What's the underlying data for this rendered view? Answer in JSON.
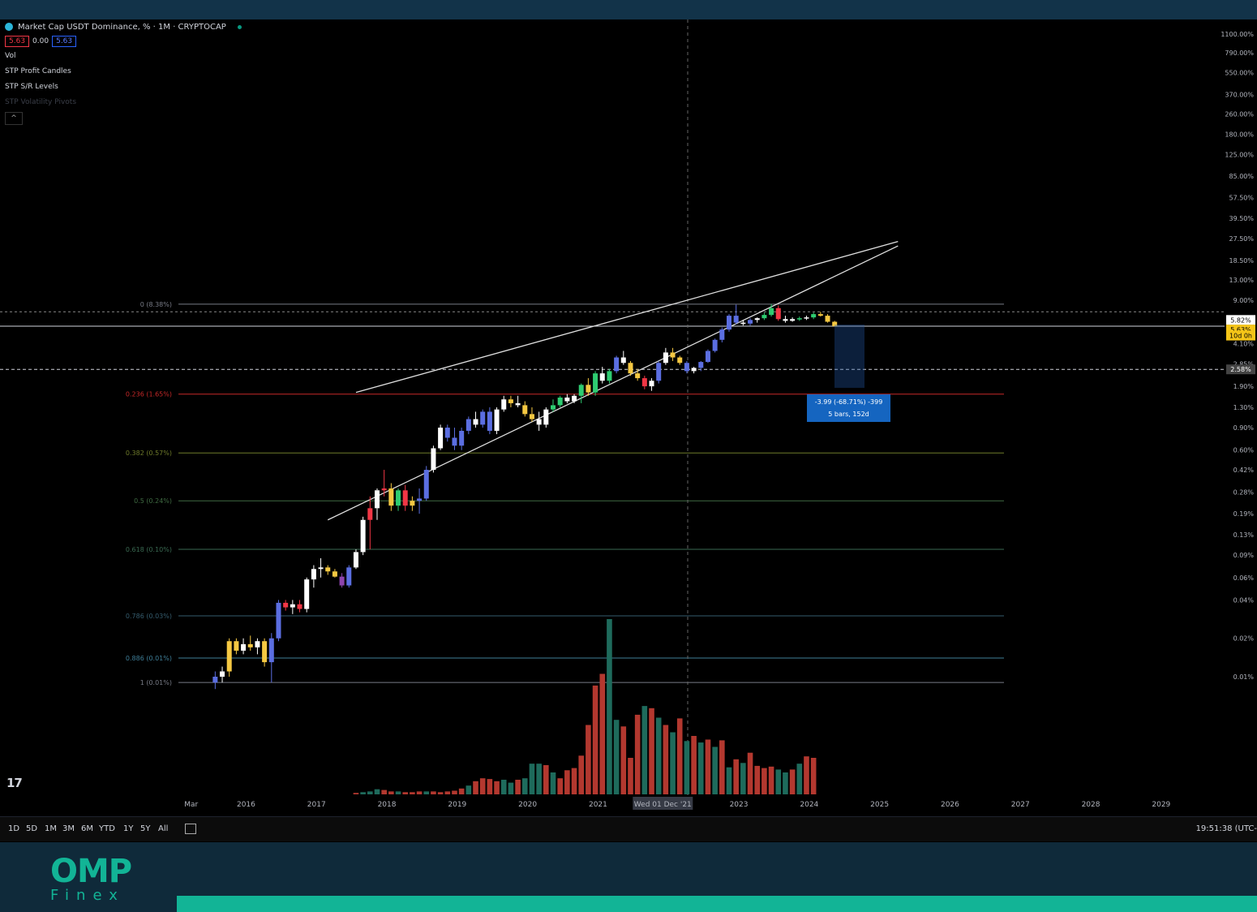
{
  "legend": {
    "title": "Market Cap USDT Dominance, % · 1M · CRYPTOCAP",
    "price_left": "5.63",
    "price_mid": "0.00",
    "price_right": "5.63",
    "indicators": [
      "Vol",
      "STP Profit Candles",
      "STP S/R Levels",
      "STP Volatility Pivots"
    ],
    "collapse_label": "^"
  },
  "colors": {
    "background": "#000000",
    "bull_candle": "#5b6ee1",
    "bear_candle": "#f23645",
    "white_candle": "#ffffff",
    "yellow_candle": "#f5c842",
    "volume_bear": "#b3382f",
    "volume_bull": "#1e6b5c",
    "brand": "#12b496"
  },
  "chart_data": {
    "type": "candlestick",
    "title": "Market Cap USDT Dominance, % · 1M · CRYPTOCAP",
    "y_scale": "log",
    "y_axis_ticks": [
      "1100.00%",
      "790.00%",
      "550.00%",
      "370.00%",
      "260.00%",
      "180.00%",
      "125.00%",
      "85.00%",
      "57.50%",
      "39.50%",
      "27.50%",
      "18.50%",
      "13.00%",
      "9.00%",
      "6.10%",
      "4.10%",
      "2.85%",
      "1.90%",
      "1.30%",
      "0.90%",
      "0.60%",
      "0.42%",
      "0.28%",
      "0.19%",
      "0.13%",
      "0.09%",
      "0.06%",
      "0.04%",
      "0.02%",
      "0.01%"
    ],
    "x_axis_ticks": [
      "Mar",
      "2016",
      "2017",
      "2018",
      "2019",
      "2020",
      "2021",
      "Wed 01 Dec '21",
      "2023",
      "2024",
      "2025",
      "2026",
      "2027",
      "2028",
      "2029"
    ],
    "current_price_labels": [
      "5.82%",
      "5.63%",
      "10d 0h",
      "2.58%"
    ],
    "fib_levels": [
      {
        "label": "0 (8.38%)",
        "value": 8.38,
        "color": "#787b86"
      },
      {
        "label": "0.236 (1.65%)",
        "value": 1.65,
        "color": "#c62828"
      },
      {
        "label": "0.382 (0.57%)",
        "value": 0.57,
        "color": "#6e7a2a"
      },
      {
        "label": "0.5 (0.24%)",
        "value": 0.24,
        "color": "#3f6b42"
      },
      {
        "label": "0.618 (0.10%)",
        "value": 0.1,
        "color": "#3a6a52"
      },
      {
        "label": "0.786 (0.03%)",
        "value": 0.03,
        "color": "#355c6e"
      },
      {
        "label": "0.886 (0.01%)",
        "value": 0.014,
        "color": "#3f7f99"
      },
      {
        "label": "1 (0.01%)",
        "value": 0.009,
        "color": "#787b86"
      }
    ],
    "horizontal_lines": [
      7.3,
      5.63,
      2.58
    ],
    "measure_label": [
      "-3.99 (-68.71%) -399",
      "5 bars, 152d"
    ],
    "crosshair_date": "Wed 01 Dec '21",
    "candles": [
      {
        "d": "2015.9",
        "o": 0.009,
        "h": 0.011,
        "l": 0.008,
        "c": 0.01,
        "t": "b"
      },
      {
        "d": "2016.0",
        "o": 0.01,
        "h": 0.012,
        "l": 0.009,
        "c": 0.011,
        "t": "w"
      },
      {
        "d": "2016.1",
        "o": 0.011,
        "h": 0.02,
        "l": 0.01,
        "c": 0.019,
        "t": "y"
      },
      {
        "d": "2016.2",
        "o": 0.019,
        "h": 0.02,
        "l": 0.015,
        "c": 0.016,
        "t": "y"
      },
      {
        "d": "2016.3",
        "o": 0.016,
        "h": 0.02,
        "l": 0.015,
        "c": 0.018,
        "t": "w"
      },
      {
        "d": "2016.4",
        "o": 0.018,
        "h": 0.021,
        "l": 0.016,
        "c": 0.017,
        "t": "y"
      },
      {
        "d": "2016.5",
        "o": 0.017,
        "h": 0.02,
        "l": 0.015,
        "c": 0.019,
        "t": "w"
      },
      {
        "d": "2016.6",
        "o": 0.019,
        "h": 0.02,
        "l": 0.012,
        "c": 0.013,
        "t": "y"
      },
      {
        "d": "2016.7",
        "o": 0.013,
        "h": 0.022,
        "l": 0.009,
        "c": 0.02,
        "t": "b"
      },
      {
        "d": "2016.8",
        "o": 0.02,
        "h": 0.04,
        "l": 0.019,
        "c": 0.038,
        "t": "b"
      },
      {
        "d": "2016.9",
        "o": 0.038,
        "h": 0.04,
        "l": 0.033,
        "c": 0.035,
        "t": "r"
      },
      {
        "d": "2017.0",
        "o": 0.035,
        "h": 0.04,
        "l": 0.031,
        "c": 0.037,
        "t": "w"
      },
      {
        "d": "2017.1",
        "o": 0.037,
        "h": 0.04,
        "l": 0.032,
        "c": 0.034,
        "t": "r"
      },
      {
        "d": "2017.2",
        "o": 0.034,
        "h": 0.06,
        "l": 0.032,
        "c": 0.058,
        "t": "w"
      },
      {
        "d": "2017.3",
        "o": 0.058,
        "h": 0.075,
        "l": 0.05,
        "c": 0.07,
        "t": "w"
      },
      {
        "d": "2017.4",
        "o": 0.07,
        "h": 0.085,
        "l": 0.06,
        "c": 0.072,
        "t": "w"
      },
      {
        "d": "2017.5",
        "o": 0.072,
        "h": 0.075,
        "l": 0.063,
        "c": 0.067,
        "t": "y"
      },
      {
        "d": "2017.6",
        "o": 0.067,
        "h": 0.07,
        "l": 0.06,
        "c": 0.061,
        "t": "y"
      },
      {
        "d": "2017.7",
        "o": 0.061,
        "h": 0.065,
        "l": 0.05,
        "c": 0.052,
        "t": "p"
      },
      {
        "d": "2017.8",
        "o": 0.052,
        "h": 0.075,
        "l": 0.05,
        "c": 0.072,
        "t": "b"
      },
      {
        "d": "2017.9",
        "o": 0.072,
        "h": 0.1,
        "l": 0.07,
        "c": 0.095,
        "t": "w"
      },
      {
        "d": "2018.0",
        "o": 0.095,
        "h": 0.18,
        "l": 0.09,
        "c": 0.17,
        "t": "w"
      },
      {
        "d": "2018.1",
        "o": 0.17,
        "h": 0.26,
        "l": 0.1,
        "c": 0.21,
        "t": "r"
      },
      {
        "d": "2018.2",
        "o": 0.21,
        "h": 0.3,
        "l": 0.17,
        "c": 0.29,
        "t": "w"
      },
      {
        "d": "2018.3",
        "o": 0.29,
        "h": 0.42,
        "l": 0.26,
        "c": 0.3,
        "t": "r"
      },
      {
        "d": "2018.4",
        "o": 0.3,
        "h": 0.33,
        "l": 0.2,
        "c": 0.22,
        "t": "y"
      },
      {
        "d": "2018.5",
        "o": 0.22,
        "h": 0.3,
        "l": 0.2,
        "c": 0.29,
        "t": "g"
      },
      {
        "d": "2018.6",
        "o": 0.29,
        "h": 0.32,
        "l": 0.2,
        "c": 0.22,
        "t": "r"
      },
      {
        "d": "2018.7",
        "o": 0.22,
        "h": 0.26,
        "l": 0.2,
        "c": 0.24,
        "t": "y"
      },
      {
        "d": "2018.8",
        "o": 0.24,
        "h": 0.3,
        "l": 0.19,
        "c": 0.25,
        "t": "b"
      },
      {
        "d": "2018.9",
        "o": 0.25,
        "h": 0.45,
        "l": 0.24,
        "c": 0.42,
        "t": "b"
      },
      {
        "d": "2019.0",
        "o": 0.42,
        "h": 0.65,
        "l": 0.4,
        "c": 0.62,
        "t": "w"
      },
      {
        "d": "2019.1",
        "o": 0.62,
        "h": 0.95,
        "l": 0.6,
        "c": 0.9,
        "t": "w"
      },
      {
        "d": "2019.2",
        "o": 0.9,
        "h": 0.95,
        "l": 0.7,
        "c": 0.75,
        "t": "b"
      },
      {
        "d": "2019.3",
        "o": 0.75,
        "h": 0.9,
        "l": 0.6,
        "c": 0.65,
        "t": "b"
      },
      {
        "d": "2019.4",
        "o": 0.65,
        "h": 0.9,
        "l": 0.6,
        "c": 0.85,
        "t": "b"
      },
      {
        "d": "2019.5",
        "o": 0.85,
        "h": 1.1,
        "l": 0.8,
        "c": 1.05,
        "t": "b"
      },
      {
        "d": "2019.6",
        "o": 1.05,
        "h": 1.2,
        "l": 0.9,
        "c": 0.95,
        "t": "w"
      },
      {
        "d": "2019.7",
        "o": 0.95,
        "h": 1.25,
        "l": 0.9,
        "c": 1.2,
        "t": "b"
      },
      {
        "d": "2019.8",
        "o": 1.2,
        "h": 1.3,
        "l": 0.8,
        "c": 0.85,
        "t": "b"
      },
      {
        "d": "2019.9",
        "o": 0.85,
        "h": 1.3,
        "l": 0.8,
        "c": 1.25,
        "t": "w"
      },
      {
        "d": "2020.0",
        "o": 1.25,
        "h": 1.6,
        "l": 1.2,
        "c": 1.5,
        "t": "w"
      },
      {
        "d": "2020.1",
        "o": 1.5,
        "h": 1.6,
        "l": 1.3,
        "c": 1.4,
        "t": "y"
      },
      {
        "d": "2020.2",
        "o": 1.4,
        "h": 1.6,
        "l": 1.3,
        "c": 1.35,
        "t": "w"
      },
      {
        "d": "2020.3",
        "o": 1.35,
        "h": 1.45,
        "l": 1.1,
        "c": 1.15,
        "t": "y"
      },
      {
        "d": "2020.4",
        "o": 1.15,
        "h": 1.3,
        "l": 1.0,
        "c": 1.05,
        "t": "y"
      },
      {
        "d": "2020.5",
        "o": 1.05,
        "h": 1.2,
        "l": 0.85,
        "c": 0.95,
        "t": "w"
      },
      {
        "d": "2020.6",
        "o": 0.95,
        "h": 1.3,
        "l": 0.9,
        "c": 1.25,
        "t": "w"
      },
      {
        "d": "2020.7",
        "o": 1.25,
        "h": 1.5,
        "l": 1.2,
        "c": 1.35,
        "t": "g"
      },
      {
        "d": "2020.8",
        "o": 1.35,
        "h": 1.6,
        "l": 1.3,
        "c": 1.55,
        "t": "g"
      },
      {
        "d": "2020.9",
        "o": 1.55,
        "h": 1.65,
        "l": 1.4,
        "c": 1.45,
        "t": "w"
      },
      {
        "d": "2021.0",
        "o": 1.45,
        "h": 1.65,
        "l": 1.4,
        "c": 1.6,
        "t": "w"
      },
      {
        "d": "2021.1",
        "o": 1.6,
        "h": 2.0,
        "l": 1.4,
        "c": 1.95,
        "t": "g"
      },
      {
        "d": "2021.2",
        "o": 1.95,
        "h": 2.2,
        "l": 1.6,
        "c": 1.7,
        "t": "y"
      },
      {
        "d": "2021.3",
        "o": 1.7,
        "h": 2.5,
        "l": 1.6,
        "c": 2.4,
        "t": "g"
      },
      {
        "d": "2021.4",
        "o": 2.4,
        "h": 2.7,
        "l": 2.0,
        "c": 2.1,
        "t": "w"
      },
      {
        "d": "2021.5",
        "o": 2.1,
        "h": 2.6,
        "l": 2.0,
        "c": 2.5,
        "t": "g"
      },
      {
        "d": "2021.6",
        "o": 2.5,
        "h": 3.3,
        "l": 2.4,
        "c": 3.2,
        "t": "b"
      },
      {
        "d": "2021.7",
        "o": 3.2,
        "h": 3.6,
        "l": 2.8,
        "c": 2.9,
        "t": "w"
      },
      {
        "d": "2021.8",
        "o": 2.9,
        "h": 3.0,
        "l": 2.3,
        "c": 2.4,
        "t": "y"
      },
      {
        "d": "2021.9",
        "o": 2.4,
        "h": 2.6,
        "l": 2.1,
        "c": 2.2,
        "t": "y"
      },
      {
        "d": "2022.0",
        "o": 2.2,
        "h": 2.3,
        "l": 1.8,
        "c": 1.9,
        "t": "r"
      },
      {
        "d": "2022.1",
        "o": 1.9,
        "h": 2.2,
        "l": 1.75,
        "c": 2.1,
        "t": "w"
      },
      {
        "d": "2022.2",
        "o": 2.1,
        "h": 3.0,
        "l": 2.0,
        "c": 2.9,
        "t": "b"
      },
      {
        "d": "2022.3",
        "o": 2.9,
        "h": 3.8,
        "l": 2.8,
        "c": 3.5,
        "t": "w"
      },
      {
        "d": "2022.4",
        "o": 3.5,
        "h": 3.8,
        "l": 3.0,
        "c": 3.2,
        "t": "y"
      },
      {
        "d": "2022.5",
        "o": 3.2,
        "h": 3.3,
        "l": 2.8,
        "c": 2.9,
        "t": "y"
      },
      {
        "d": "2022.6",
        "o": 2.9,
        "h": 3.0,
        "l": 2.4,
        "c": 2.5,
        "t": "b"
      },
      {
        "d": "2022.7",
        "o": 2.5,
        "h": 2.7,
        "l": 2.4,
        "c": 2.65,
        "t": "w"
      },
      {
        "d": "2022.8",
        "o": 2.65,
        "h": 3.0,
        "l": 2.5,
        "c": 2.95,
        "t": "b"
      },
      {
        "d": "2022.9",
        "o": 2.95,
        "h": 3.7,
        "l": 2.9,
        "c": 3.6,
        "t": "b"
      },
      {
        "d": "2023.0",
        "o": 3.6,
        "h": 4.5,
        "l": 3.5,
        "c": 4.4,
        "t": "b"
      },
      {
        "d": "2023.1",
        "o": 4.4,
        "h": 5.5,
        "l": 4.2,
        "c": 5.3,
        "t": "b"
      },
      {
        "d": "2023.2",
        "o": 5.3,
        "h": 7.0,
        "l": 5.1,
        "c": 6.8,
        "t": "b"
      },
      {
        "d": "2023.3",
        "o": 6.8,
        "h": 8.3,
        "l": 5.8,
        "c": 6.0,
        "t": "b"
      },
      {
        "d": "2023.4",
        "o": 6.0,
        "h": 6.3,
        "l": 5.7,
        "c": 5.9,
        "t": "w"
      },
      {
        "d": "2023.5",
        "o": 5.9,
        "h": 6.5,
        "l": 5.7,
        "c": 6.3,
        "t": "b"
      },
      {
        "d": "2023.6",
        "o": 6.3,
        "h": 6.6,
        "l": 6.0,
        "c": 6.5,
        "t": "w"
      },
      {
        "d": "2023.7",
        "o": 6.5,
        "h": 7.2,
        "l": 6.3,
        "c": 6.9,
        "t": "g"
      },
      {
        "d": "2023.8",
        "o": 6.9,
        "h": 8.4,
        "l": 6.7,
        "c": 7.8,
        "t": "g"
      },
      {
        "d": "2023.9",
        "o": 7.8,
        "h": 8.2,
        "l": 6.2,
        "c": 6.4,
        "t": "r"
      },
      {
        "d": "2024.0",
        "o": 6.4,
        "h": 6.8,
        "l": 6.0,
        "c": 6.2,
        "t": "w"
      },
      {
        "d": "2024.1",
        "o": 6.2,
        "h": 6.6,
        "l": 6.1,
        "c": 6.4,
        "t": "w"
      },
      {
        "d": "2024.2",
        "o": 6.4,
        "h": 6.7,
        "l": 6.2,
        "c": 6.5,
        "t": "g"
      },
      {
        "d": "2024.3",
        "o": 6.5,
        "h": 6.8,
        "l": 6.3,
        "c": 6.6,
        "t": "w"
      },
      {
        "d": "2024.4",
        "o": 6.6,
        "h": 7.2,
        "l": 6.4,
        "c": 7.0,
        "t": "g"
      },
      {
        "d": "2024.5",
        "o": 7.0,
        "h": 7.3,
        "l": 6.7,
        "c": 6.8,
        "t": "y"
      },
      {
        "d": "2024.6",
        "o": 6.8,
        "h": 7.0,
        "l": 6.0,
        "c": 6.1,
        "t": "y"
      },
      {
        "d": "2024.7",
        "o": 6.1,
        "h": 6.2,
        "l": 5.6,
        "c": 5.63,
        "t": "y"
      }
    ],
    "volume": [
      {
        "d": "2017.9",
        "v": 2,
        "t": "b"
      },
      {
        "d": "2018.0",
        "v": 3,
        "t": "g"
      },
      {
        "d": "2018.1",
        "v": 4,
        "t": "g"
      },
      {
        "d": "2018.2",
        "v": 7,
        "t": "g"
      },
      {
        "d": "2018.3",
        "v": 6,
        "t": "r"
      },
      {
        "d": "2018.4",
        "v": 4,
        "t": "r"
      },
      {
        "d": "2018.5",
        "v": 4,
        "t": "g"
      },
      {
        "d": "2018.6",
        "v": 3,
        "t": "r"
      },
      {
        "d": "2018.7",
        "v": 3,
        "t": "r"
      },
      {
        "d": "2018.8",
        "v": 4,
        "t": "r"
      },
      {
        "d": "2018.9",
        "v": 4,
        "t": "g"
      },
      {
        "d": "2019.0",
        "v": 4,
        "t": "r"
      },
      {
        "d": "2019.1",
        "v": 3,
        "t": "r"
      },
      {
        "d": "2019.2",
        "v": 4,
        "t": "r"
      },
      {
        "d": "2019.3",
        "v": 5,
        "t": "r"
      },
      {
        "d": "2019.4",
        "v": 8,
        "t": "r"
      },
      {
        "d": "2019.5",
        "v": 12,
        "t": "g"
      },
      {
        "d": "2019.6",
        "v": 18,
        "t": "r"
      },
      {
        "d": "2019.7",
        "v": 22,
        "t": "r"
      },
      {
        "d": "2019.8",
        "v": 21,
        "t": "r"
      },
      {
        "d": "2019.9",
        "v": 18,
        "t": "r"
      },
      {
        "d": "2020.0",
        "v": 20,
        "t": "g"
      },
      {
        "d": "2020.1",
        "v": 16,
        "t": "g"
      },
      {
        "d": "2020.2",
        "v": 20,
        "t": "r"
      },
      {
        "d": "2020.3",
        "v": 22,
        "t": "g"
      },
      {
        "d": "2020.4",
        "v": 42,
        "t": "g"
      },
      {
        "d": "2020.5",
        "v": 42,
        "t": "g"
      },
      {
        "d": "2020.6",
        "v": 40,
        "t": "r"
      },
      {
        "d": "2020.7",
        "v": 30,
        "t": "g"
      },
      {
        "d": "2020.8",
        "v": 22,
        "t": "r"
      },
      {
        "d": "2020.9",
        "v": 33,
        "t": "r"
      },
      {
        "d": "2021.0",
        "v": 36,
        "t": "r"
      },
      {
        "d": "2021.1",
        "v": 53,
        "t": "r"
      },
      {
        "d": "2021.2",
        "v": 95,
        "t": "r"
      },
      {
        "d": "2021.3",
        "v": 149,
        "t": "r"
      },
      {
        "d": "2021.4",
        "v": 165,
        "t": "r"
      },
      {
        "d": "2021.5",
        "v": 240,
        "t": "g"
      },
      {
        "d": "2021.6",
        "v": 102,
        "t": "g"
      },
      {
        "d": "2021.7",
        "v": 93,
        "t": "r"
      },
      {
        "d": "2021.8",
        "v": 50,
        "t": "r"
      },
      {
        "d": "2021.9",
        "v": 109,
        "t": "r"
      },
      {
        "d": "2022.0",
        "v": 121,
        "t": "g"
      },
      {
        "d": "2022.1",
        "v": 118,
        "t": "r"
      },
      {
        "d": "2022.2",
        "v": 105,
        "t": "g"
      },
      {
        "d": "2022.3",
        "v": 95,
        "t": "r"
      },
      {
        "d": "2022.4",
        "v": 85,
        "t": "g"
      },
      {
        "d": "2022.5",
        "v": 104,
        "t": "r"
      },
      {
        "d": "2022.6",
        "v": 73,
        "t": "g"
      },
      {
        "d": "2022.7",
        "v": 80,
        "t": "r"
      },
      {
        "d": "2022.8",
        "v": 71,
        "t": "g"
      },
      {
        "d": "2022.9",
        "v": 75,
        "t": "r"
      },
      {
        "d": "2023.0",
        "v": 65,
        "t": "g"
      },
      {
        "d": "2023.1",
        "v": 74,
        "t": "r"
      },
      {
        "d": "2023.2",
        "v": 37,
        "t": "g"
      },
      {
        "d": "2023.3",
        "v": 48,
        "t": "r"
      },
      {
        "d": "2023.4",
        "v": 43,
        "t": "g"
      },
      {
        "d": "2023.5",
        "v": 57,
        "t": "r"
      },
      {
        "d": "2023.6",
        "v": 39,
        "t": "r"
      },
      {
        "d": "2023.7",
        "v": 36,
        "t": "r"
      },
      {
        "d": "2023.8",
        "v": 38,
        "t": "r"
      },
      {
        "d": "2023.9",
        "v": 34,
        "t": "g"
      },
      {
        "d": "2024.0",
        "v": 30,
        "t": "g"
      },
      {
        "d": "2024.1",
        "v": 34,
        "t": "r"
      },
      {
        "d": "2024.2",
        "v": 42,
        "t": "g"
      },
      {
        "d": "2024.3",
        "v": 52,
        "t": "r"
      },
      {
        "d": "2024.4",
        "v": 50,
        "t": "r"
      }
    ]
  },
  "toolbar": {
    "timeframes": [
      "1D",
      "5D",
      "1M",
      "3M",
      "6M",
      "YTD",
      "1Y",
      "5Y",
      "All"
    ],
    "clock": "19:51:38 (UTC-"
  },
  "branding": {
    "logo": "OMP",
    "sub": "Finex",
    "tv": "17"
  }
}
